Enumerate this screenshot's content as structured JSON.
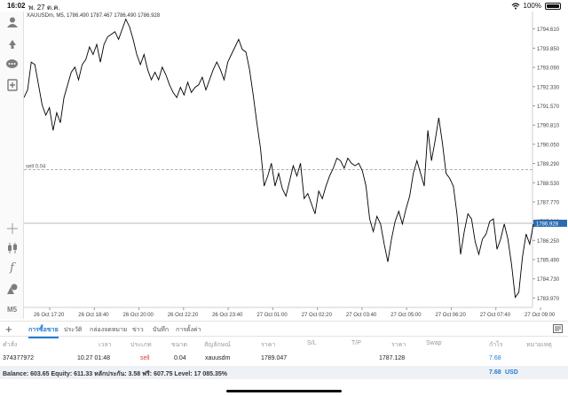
{
  "status_bar": {
    "time": "16:02",
    "date": "พ. 27 ต.ค.",
    "battery": "100%",
    "icons": [
      "wifi-icon",
      "battery-icon"
    ]
  },
  "toolbar": {
    "items": [
      {
        "name": "account-icon"
      },
      {
        "name": "trade-icon"
      },
      {
        "name": "chat-icon"
      },
      {
        "name": "new-order-icon"
      },
      {
        "name": "crosshair-icon"
      },
      {
        "name": "candles-icon"
      },
      {
        "name": "indicators-icon"
      },
      {
        "name": "objects-icon"
      }
    ],
    "timeframe": "M5"
  },
  "chart": {
    "symbol_info": "XAUUSDm, M5, 1786.490 1787.467 1786.490 1786.928",
    "current_price": "1786.928",
    "order_line_label": "sell 0.04",
    "line_color": "#000000",
    "price_tag_color": "#2b6cb0"
  },
  "chart_data": {
    "type": "line",
    "y_ticks": [
      "1794.610",
      "1793.850",
      "1793.090",
      "1792.330",
      "1791.570",
      "1790.810",
      "1790.050",
      "1789.290",
      "1788.530",
      "1787.770",
      "1787.010",
      "1786.250",
      "1785.490",
      "1784.730",
      "1783.970"
    ],
    "x_ticks": [
      "26 Oct 17:20",
      "26 Oct 18:40",
      "26 Oct 20:00",
      "26 Oct 22:20",
      "26 Oct 23:40",
      "27 Oct 01:00",
      "27 Oct 02:20",
      "27 Oct 03:40",
      "27 Oct 05:00",
      "27 Oct 06:20",
      "27 Oct 07:40",
      "27 Oct 09:00"
    ],
    "ylim": [
      1783.6,
      1795.3
    ],
    "order_price": 1789.047,
    "current_price": 1786.928,
    "close": [
      1791.9,
      1792.2,
      1793.3,
      1793.2,
      1792.4,
      1791.6,
      1791.2,
      1791.5,
      1790.6,
      1791.3,
      1790.9,
      1791.9,
      1792.4,
      1792.9,
      1793.1,
      1792.6,
      1793.2,
      1793.4,
      1793.9,
      1793.6,
      1794.0,
      1793.3,
      1794.0,
      1794.3,
      1794.4,
      1794.5,
      1794.2,
      1794.6,
      1795.0,
      1794.7,
      1794.2,
      1793.6,
      1793.2,
      1793.6,
      1793.0,
      1792.6,
      1792.9,
      1792.6,
      1793.1,
      1792.8,
      1792.4,
      1792.1,
      1791.9,
      1792.3,
      1792.0,
      1792.5,
      1792.1,
      1792.3,
      1792.4,
      1792.7,
      1792.2,
      1792.6,
      1793.0,
      1793.3,
      1793.0,
      1792.6,
      1793.3,
      1793.6,
      1793.9,
      1794.2,
      1793.8,
      1793.7,
      1793.0,
      1792.0,
      1790.9,
      1789.9,
      1788.4,
      1788.8,
      1789.3,
      1788.4,
      1788.9,
      1788.3,
      1788.0,
      1788.6,
      1789.2,
      1788.8,
      1789.3,
      1787.9,
      1788.1,
      1787.7,
      1787.3,
      1788.2,
      1787.9,
      1788.4,
      1788.8,
      1789.1,
      1789.5,
      1789.4,
      1789.1,
      1789.5,
      1789.3,
      1789.2,
      1789.3,
      1789.0,
      1788.4,
      1787.1,
      1786.6,
      1787.2,
      1786.9,
      1786.1,
      1785.4,
      1786.3,
      1787.0,
      1787.4,
      1786.9,
      1787.5,
      1788.0,
      1788.9,
      1789.4,
      1788.9,
      1788.4,
      1790.6,
      1789.4,
      1790.2,
      1791.1,
      1790.1,
      1788.9,
      1788.7,
      1788.4,
      1787.3,
      1785.7,
      1786.6,
      1787.3,
      1787.1,
      1786.2,
      1785.7,
      1786.3,
      1786.5,
      1787.0,
      1787.1,
      1785.9,
      1786.3,
      1786.9,
      1786.3,
      1785.3,
      1784.0,
      1784.2,
      1785.6,
      1786.5,
      1786.1,
      1786.9
    ]
  },
  "tabs": {
    "items": [
      "การซื้อขาย",
      "ประวัติ",
      "กล่องจดหมาย",
      "ข่าว",
      "บันทึก",
      "การตั้งค่า"
    ],
    "active_index": 0
  },
  "table": {
    "headers": [
      "คำสั่ง",
      "เวลา",
      "ประเภท",
      "ขนาด",
      "สัญลักษณ์",
      "ราคา",
      "S/L",
      "T/P",
      "ราคา",
      "Swap",
      "กำไร",
      "หมายเหตุ"
    ],
    "row": {
      "ticket": "374377972",
      "time": "10.27 01:48",
      "type": "sell",
      "size": "0.04",
      "symbol": "xauusdm",
      "open_price": "1789.047",
      "sl": "",
      "tp": "",
      "price": "1787.128",
      "swap": "",
      "profit": "7.68"
    }
  },
  "balance": {
    "text": "Balance: 603.65 Equity: 611.33 หลักประกัน: 3.58 ฟรี: 607.75 Level: 17 085.35%",
    "total": "7.68",
    "currency": "USD"
  }
}
